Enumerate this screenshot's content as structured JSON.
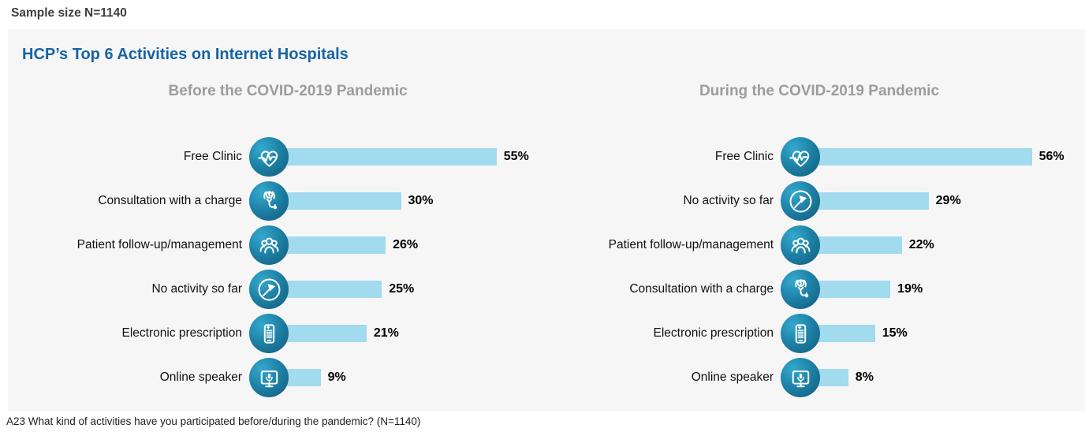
{
  "page": {
    "sample_size_note": "Sample size N=1140"
  },
  "colors": {
    "panel_background": "#f6f6f7",
    "title_blue": "#1664a3",
    "chart_title_gray": "#9c9c9c",
    "bar_fill": "#a2daee",
    "icon_circle_gradient_start": "#35a9ce",
    "icon_circle_gradient_end": "#125b7b",
    "value_text": "#000000"
  },
  "chart_data": {
    "type": "bar",
    "orientation": "horizontal",
    "unit": "%",
    "title": "HCP’s Top 6 Activities on Internet Hospitals",
    "sample_size_note": "Sample size N=1140",
    "footnote": "A23 What kind of activities have you participated before/during the pandemic? (N=1140)",
    "xlim": [
      0,
      60
    ],
    "grid": false,
    "legend": "none",
    "charts": [
      {
        "title": "Before the COVID-2019 Pandemic",
        "rows": [
          {
            "label": "Free Clinic",
            "value": 55,
            "value_label": "55%",
            "icon": "heart-pulse-icon"
          },
          {
            "label": "Consultation with a charge",
            "value": 30,
            "value_label": "30%",
            "icon": "stethoscope-dollar-icon"
          },
          {
            "label": "Patient follow-up/management",
            "value": 26,
            "value_label": "26%",
            "icon": "people-group-icon"
          },
          {
            "label": "No activity so far",
            "value": 25,
            "value_label": "25%",
            "icon": "cursor-circle-icon"
          },
          {
            "label": "Electronic prescription",
            "value": 21,
            "value_label": "21%",
            "icon": "phone-prescription-icon"
          },
          {
            "label": "Online speaker",
            "value": 9,
            "value_label": "9%",
            "icon": "monitor-mic-icon"
          }
        ]
      },
      {
        "title": "During the COVID-2019 Pandemic",
        "rows": [
          {
            "label": "Free Clinic",
            "value": 56,
            "value_label": "56%",
            "icon": "heart-pulse-icon"
          },
          {
            "label": "No activity so far",
            "value": 29,
            "value_label": "29%",
            "icon": "cursor-circle-icon"
          },
          {
            "label": "Patient follow-up/management",
            "value": 22,
            "value_label": "22%",
            "icon": "people-group-icon"
          },
          {
            "label": "Consultation with a charge",
            "value": 19,
            "value_label": "19%",
            "icon": "stethoscope-dollar-icon"
          },
          {
            "label": "Electronic prescription",
            "value": 15,
            "value_label": "15%",
            "icon": "phone-prescription-icon"
          },
          {
            "label": "Online speaker",
            "value": 8,
            "value_label": "8%",
            "icon": "monitor-mic-icon"
          }
        ]
      }
    ]
  }
}
